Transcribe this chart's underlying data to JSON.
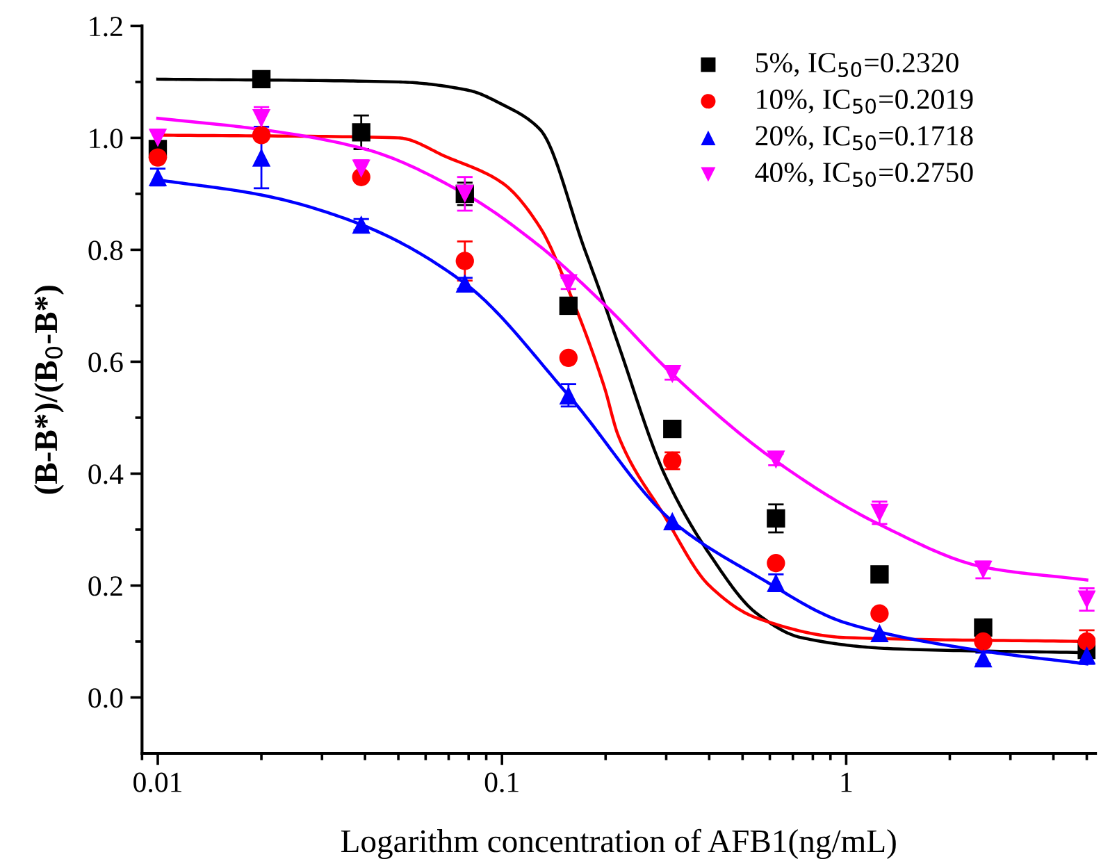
{
  "chart_data": {
    "type": "scatter",
    "xlabel": "Logarithm concentration of AFB1(ng/mL)",
    "ylabel": "(B-B*)/(B$_{0}$-B*)",
    "log": "x",
    "xlim": [
      0.009,
      5.3
    ],
    "xticks": [
      0.01,
      0.1,
      1
    ],
    "ylim": [
      -0.1,
      1.2
    ],
    "yticks": [
      {
        "value": 0.0,
        "label": "0.0"
      },
      {
        "value": 0.2,
        "label": "0.2"
      },
      {
        "value": 0.4,
        "label": "0.4"
      },
      {
        "value": 0.6,
        "label": "0.6"
      },
      {
        "value": 0.8,
        "label": "0.8"
      },
      {
        "value": 1.0,
        "label": "1.0"
      },
      {
        "value": 1.2,
        "label": "1.2"
      }
    ],
    "grid": false,
    "legend": "top right",
    "series": [
      {
        "name": "5%, IC$_{50}$=0.2320",
        "color": "#000000",
        "marker": "square",
        "x": [
          0.01,
          0.02,
          0.039,
          0.078,
          0.156,
          0.3125,
          0.625,
          1.25,
          2.5,
          5
        ],
        "values": [
          0.98,
          1.105,
          1.01,
          0.9,
          0.7,
          0.48,
          0.32,
          0.22,
          0.125,
          0.085
        ],
        "errors": [
          null,
          null,
          0.03,
          0.02,
          null,
          null,
          0.025,
          null,
          null,
          null
        ]
      },
      {
        "name": "10%, IC$_{50}$=0.2019",
        "color": "#ff0000",
        "marker": "circle",
        "x": [
          0.01,
          0.02,
          0.039,
          0.078,
          0.156,
          0.3125,
          0.625,
          1.25,
          2.5,
          5
        ],
        "values": [
          0.965,
          1.005,
          0.93,
          0.78,
          0.607,
          0.423,
          0.24,
          0.15,
          0.1,
          0.1
        ],
        "errors": [
          null,
          null,
          null,
          0.035,
          null,
          0.015,
          null,
          null,
          null,
          0.02
        ]
      },
      {
        "name": "20%, IC$_{50}$=0.1718",
        "color": "#0000ff",
        "marker": "triangle",
        "x": [
          0.01,
          0.02,
          0.039,
          0.078,
          0.156,
          0.3125,
          0.625,
          1.25,
          2.5,
          5
        ],
        "values": [
          0.93,
          0.965,
          0.845,
          0.74,
          0.54,
          0.315,
          0.205,
          0.115,
          0.07,
          0.075
        ],
        "errors": [
          0.015,
          0.055,
          0.01,
          0.01,
          0.02,
          null,
          0.015,
          null,
          0.01,
          0.015
        ]
      },
      {
        "name": "40%, IC$_{50}$=0.2750",
        "color": "#ff00ff",
        "marker": "triangle_down",
        "x": [
          0.01,
          0.02,
          0.039,
          0.078,
          0.156,
          0.3125,
          0.625,
          1.25,
          2.5,
          5
        ],
        "values": [
          1.0,
          1.035,
          0.945,
          0.9,
          0.74,
          0.578,
          0.425,
          0.33,
          0.228,
          0.175
        ],
        "errors": [
          0.015,
          0.02,
          0.015,
          0.03,
          0.01,
          0.01,
          0.01,
          0.02,
          0.015,
          0.02
        ]
      },
      {
        "type": "line",
        "color": "#000000",
        "x": [
          0.01,
          0.05,
          0.08,
          0.1,
          0.129,
          0.174,
          0.198,
          0.218,
          0.296,
          0.4,
          0.55,
          0.74,
          1.37,
          5
        ],
        "values": [
          1.105,
          1.1,
          1.085,
          1.06,
          1.015,
          0.8,
          0.705,
          0.63,
          0.4,
          0.257,
          0.15,
          0.107,
          0.087,
          0.08
        ]
      },
      {
        "type": "line",
        "color": "#ff0000",
        "x": [
          0.01,
          0.05,
          0.069,
          0.1,
          0.129,
          0.159,
          0.198,
          0.218,
          0.296,
          0.4,
          0.55,
          1.0,
          5
        ],
        "values": [
          1.005,
          1.0,
          0.966,
          0.92,
          0.84,
          0.716,
          0.556,
          0.467,
          0.325,
          0.2,
          0.142,
          0.107,
          0.1
        ]
      },
      {
        "type": "line",
        "color": "#0000ff",
        "x": [
          0.01,
          0.02,
          0.039,
          0.078,
          0.156,
          0.3125,
          0.55,
          1.0,
          2.5,
          5
        ],
        "values": [
          0.925,
          0.898,
          0.845,
          0.74,
          0.54,
          0.315,
          0.217,
          0.133,
          0.083,
          0.06
        ]
      },
      {
        "type": "line",
        "color": "#ff00ff",
        "x": [
          0.01,
          0.02,
          0.04,
          0.078,
          0.129,
          0.2,
          0.3125,
          0.62,
          1.27,
          2.55,
          5
        ],
        "values": [
          1.035,
          1.015,
          0.98,
          0.9,
          0.806,
          0.7,
          0.578,
          0.424,
          0.307,
          0.232,
          0.21
        ]
      }
    ]
  }
}
